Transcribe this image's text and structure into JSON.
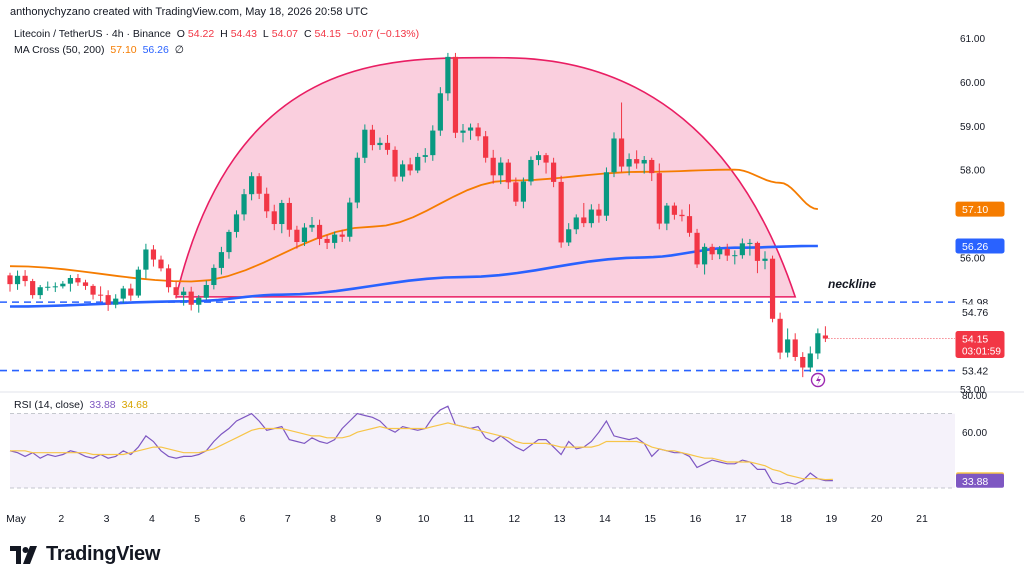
{
  "header": {
    "credit": "anthonychyzano created with TradingView.com, May 18, 2026 20:58 UTC"
  },
  "legend": {
    "symbol": "Litecoin / TetherUS · 4h · Binance",
    "o_label": "O",
    "o": "54.22",
    "h_label": "H",
    "h": "54.43",
    "l_label": "L",
    "l": "54.07",
    "c_label": "C",
    "c": "54.15",
    "change": "−0.07 (−0.13%)",
    "ma_label": "MA Cross (50, 200)",
    "ma50": "57.10",
    "ma200": "56.26",
    "ma_suffix": "∅",
    "rsi_label": "RSI (14, close)",
    "rsi": "33.88",
    "rsi_ma": "34.68"
  },
  "annotation": {
    "neckline": "neckline"
  },
  "branding": {
    "logo_text": "TradingView"
  },
  "colors": {
    "up": "#089981",
    "down": "#f23645",
    "ma50": "#f57c00",
    "ma200": "#2962ff",
    "rsi": "#7e57c2",
    "rsi_ma": "#f7c548",
    "dashed": "#2962ff",
    "cup": "#f8bbd0",
    "cup_stroke": "#e91e63"
  },
  "chart_data": [
    {
      "type": "candlestick",
      "title": "Litecoin / TetherUS · 4h · Binance",
      "x_ticks": [
        "May",
        "2",
        "3",
        "4",
        "5",
        "6",
        "7",
        "8",
        "9",
        "10",
        "11",
        "12",
        "13",
        "14",
        "15",
        "16",
        "17",
        "18",
        "19",
        "20",
        "21"
      ],
      "y_ticks": [
        53.0,
        56.0,
        57.0,
        58.0,
        59.0,
        60.0,
        61.0
      ],
      "y_labels": [
        "53.00",
        "56.00",
        "",
        "58.00",
        "59.00",
        "60.00",
        "61.00"
      ],
      "ylim": [
        52.9,
        61.3
      ],
      "candles": [
        {
          "o": 55.59,
          "h": 55.65,
          "l": 55.22,
          "c": 55.39
        },
        {
          "o": 55.39,
          "h": 55.7,
          "l": 55.26,
          "c": 55.58
        },
        {
          "o": 55.58,
          "h": 55.71,
          "l": 55.34,
          "c": 55.46
        },
        {
          "o": 55.46,
          "h": 55.51,
          "l": 55.06,
          "c": 55.14
        },
        {
          "o": 55.14,
          "h": 55.37,
          "l": 55.05,
          "c": 55.32
        },
        {
          "o": 55.32,
          "h": 55.45,
          "l": 55.24,
          "c": 55.33
        },
        {
          "o": 55.33,
          "h": 55.43,
          "l": 55.21,
          "c": 55.34
        },
        {
          "o": 55.34,
          "h": 55.46,
          "l": 55.29,
          "c": 55.4
        },
        {
          "o": 55.4,
          "h": 55.6,
          "l": 55.22,
          "c": 55.53
        },
        {
          "o": 55.53,
          "h": 55.62,
          "l": 55.35,
          "c": 55.43
        },
        {
          "o": 55.43,
          "h": 55.49,
          "l": 55.26,
          "c": 55.35
        },
        {
          "o": 55.35,
          "h": 55.39,
          "l": 55.04,
          "c": 55.15
        },
        {
          "o": 55.15,
          "h": 55.34,
          "l": 54.98,
          "c": 55.14
        },
        {
          "o": 55.14,
          "h": 55.25,
          "l": 54.78,
          "c": 54.92
        },
        {
          "o": 54.92,
          "h": 55.16,
          "l": 54.84,
          "c": 55.06
        },
        {
          "o": 55.06,
          "h": 55.35,
          "l": 54.96,
          "c": 55.29
        },
        {
          "o": 55.29,
          "h": 55.4,
          "l": 55.01,
          "c": 55.13
        },
        {
          "o": 55.13,
          "h": 55.79,
          "l": 55.08,
          "c": 55.72
        },
        {
          "o": 55.72,
          "h": 56.31,
          "l": 55.52,
          "c": 56.18
        },
        {
          "o": 56.18,
          "h": 56.28,
          "l": 55.79,
          "c": 55.95
        },
        {
          "o": 55.95,
          "h": 56.04,
          "l": 55.68,
          "c": 55.75
        },
        {
          "o": 55.75,
          "h": 55.84,
          "l": 55.2,
          "c": 55.32
        },
        {
          "o": 55.32,
          "h": 55.45,
          "l": 55.06,
          "c": 55.14
        },
        {
          "o": 55.14,
          "h": 55.32,
          "l": 54.9,
          "c": 55.22
        },
        {
          "o": 55.22,
          "h": 55.33,
          "l": 54.79,
          "c": 54.92
        },
        {
          "o": 54.92,
          "h": 55.14,
          "l": 54.74,
          "c": 55.08
        },
        {
          "o": 55.08,
          "h": 55.47,
          "l": 55.03,
          "c": 55.37
        },
        {
          "o": 55.37,
          "h": 55.84,
          "l": 55.27,
          "c": 55.76
        },
        {
          "o": 55.76,
          "h": 56.24,
          "l": 55.61,
          "c": 56.12
        },
        {
          "o": 56.12,
          "h": 56.63,
          "l": 55.97,
          "c": 56.58
        },
        {
          "o": 56.58,
          "h": 57.07,
          "l": 56.45,
          "c": 56.98
        },
        {
          "o": 56.98,
          "h": 57.56,
          "l": 56.84,
          "c": 57.44
        },
        {
          "o": 57.44,
          "h": 57.94,
          "l": 57.3,
          "c": 57.85
        },
        {
          "o": 57.85,
          "h": 57.92,
          "l": 57.33,
          "c": 57.45
        },
        {
          "o": 57.45,
          "h": 57.59,
          "l": 56.9,
          "c": 57.05
        },
        {
          "o": 57.05,
          "h": 57.2,
          "l": 56.62,
          "c": 56.76
        },
        {
          "o": 56.76,
          "h": 57.31,
          "l": 56.55,
          "c": 57.24
        },
        {
          "o": 57.24,
          "h": 57.36,
          "l": 56.47,
          "c": 56.63
        },
        {
          "o": 56.63,
          "h": 56.72,
          "l": 56.2,
          "c": 56.35
        },
        {
          "o": 56.35,
          "h": 56.78,
          "l": 56.26,
          "c": 56.68
        },
        {
          "o": 56.68,
          "h": 56.92,
          "l": 56.58,
          "c": 56.74
        },
        {
          "o": 56.74,
          "h": 56.86,
          "l": 56.28,
          "c": 56.42
        },
        {
          "o": 56.42,
          "h": 56.51,
          "l": 56.19,
          "c": 56.33
        },
        {
          "o": 56.33,
          "h": 56.59,
          "l": 56.2,
          "c": 56.52
        },
        {
          "o": 56.52,
          "h": 56.63,
          "l": 56.35,
          "c": 56.47
        },
        {
          "o": 56.47,
          "h": 57.36,
          "l": 56.36,
          "c": 57.25
        },
        {
          "o": 57.25,
          "h": 58.39,
          "l": 57.12,
          "c": 58.27
        },
        {
          "o": 58.27,
          "h": 59.03,
          "l": 58.15,
          "c": 58.91
        },
        {
          "o": 58.91,
          "h": 59.02,
          "l": 58.44,
          "c": 58.56
        },
        {
          "o": 58.56,
          "h": 58.73,
          "l": 58.45,
          "c": 58.61
        },
        {
          "o": 58.61,
          "h": 58.79,
          "l": 58.34,
          "c": 58.45
        },
        {
          "o": 58.45,
          "h": 58.53,
          "l": 57.73,
          "c": 57.84
        },
        {
          "o": 57.84,
          "h": 58.21,
          "l": 57.73,
          "c": 58.12
        },
        {
          "o": 58.12,
          "h": 58.27,
          "l": 57.87,
          "c": 57.98
        },
        {
          "o": 57.98,
          "h": 58.38,
          "l": 57.92,
          "c": 58.29
        },
        {
          "o": 58.29,
          "h": 58.49,
          "l": 58.16,
          "c": 58.33
        },
        {
          "o": 58.33,
          "h": 59.01,
          "l": 58.2,
          "c": 58.89
        },
        {
          "o": 58.89,
          "h": 59.88,
          "l": 58.77,
          "c": 59.74
        },
        {
          "o": 59.74,
          "h": 60.66,
          "l": 59.57,
          "c": 60.57
        },
        {
          "o": 60.57,
          "h": 60.66,
          "l": 58.72,
          "c": 58.84
        },
        {
          "o": 58.84,
          "h": 59.04,
          "l": 58.62,
          "c": 58.89
        },
        {
          "o": 58.89,
          "h": 59.05,
          "l": 58.68,
          "c": 58.96
        },
        {
          "o": 58.96,
          "h": 59.06,
          "l": 58.66,
          "c": 58.76
        },
        {
          "o": 58.76,
          "h": 58.88,
          "l": 58.16,
          "c": 58.27
        },
        {
          "o": 58.27,
          "h": 58.45,
          "l": 57.68,
          "c": 57.87
        },
        {
          "o": 57.87,
          "h": 58.28,
          "l": 57.67,
          "c": 58.16
        },
        {
          "o": 58.16,
          "h": 58.24,
          "l": 57.56,
          "c": 57.71
        },
        {
          "o": 57.71,
          "h": 57.82,
          "l": 57.17,
          "c": 57.27
        },
        {
          "o": 57.27,
          "h": 57.82,
          "l": 57.12,
          "c": 57.73
        },
        {
          "o": 57.73,
          "h": 58.3,
          "l": 57.64,
          "c": 58.22
        },
        {
          "o": 58.22,
          "h": 58.42,
          "l": 58.1,
          "c": 58.33
        },
        {
          "o": 58.33,
          "h": 58.38,
          "l": 57.91,
          "c": 58.16
        },
        {
          "o": 58.16,
          "h": 58.27,
          "l": 57.6,
          "c": 57.72
        },
        {
          "o": 57.72,
          "h": 57.86,
          "l": 56.22,
          "c": 56.34
        },
        {
          "o": 56.34,
          "h": 56.78,
          "l": 56.26,
          "c": 56.64
        },
        {
          "o": 56.64,
          "h": 56.98,
          "l": 56.53,
          "c": 56.91
        },
        {
          "o": 56.91,
          "h": 57.24,
          "l": 56.69,
          "c": 56.78
        },
        {
          "o": 56.78,
          "h": 57.21,
          "l": 56.68,
          "c": 57.09
        },
        {
          "o": 57.09,
          "h": 57.22,
          "l": 56.79,
          "c": 56.95
        },
        {
          "o": 56.95,
          "h": 58.05,
          "l": 56.83,
          "c": 57.94
        },
        {
          "o": 57.94,
          "h": 58.85,
          "l": 57.83,
          "c": 58.71
        },
        {
          "o": 58.71,
          "h": 59.53,
          "l": 57.94,
          "c": 58.07
        },
        {
          "o": 58.07,
          "h": 58.37,
          "l": 57.87,
          "c": 58.24
        },
        {
          "o": 58.24,
          "h": 58.44,
          "l": 58.02,
          "c": 58.14
        },
        {
          "o": 58.14,
          "h": 58.31,
          "l": 57.91,
          "c": 58.22
        },
        {
          "o": 58.22,
          "h": 58.27,
          "l": 57.74,
          "c": 57.92
        },
        {
          "o": 57.92,
          "h": 58.14,
          "l": 56.64,
          "c": 56.77
        },
        {
          "o": 56.77,
          "h": 57.24,
          "l": 56.62,
          "c": 57.18
        },
        {
          "o": 57.18,
          "h": 57.25,
          "l": 56.86,
          "c": 56.97
        },
        {
          "o": 56.97,
          "h": 57.09,
          "l": 56.82,
          "c": 56.94
        },
        {
          "o": 56.94,
          "h": 57.21,
          "l": 56.47,
          "c": 56.56
        },
        {
          "o": 56.56,
          "h": 56.65,
          "l": 55.76,
          "c": 55.84
        },
        {
          "o": 55.84,
          "h": 56.32,
          "l": 55.61,
          "c": 56.24
        },
        {
          "o": 56.24,
          "h": 56.31,
          "l": 55.94,
          "c": 56.07
        },
        {
          "o": 56.07,
          "h": 56.26,
          "l": 55.96,
          "c": 56.19
        },
        {
          "o": 56.19,
          "h": 56.31,
          "l": 55.92,
          "c": 56.04
        },
        {
          "o": 56.04,
          "h": 56.16,
          "l": 55.84,
          "c": 56.05
        },
        {
          "o": 56.05,
          "h": 56.43,
          "l": 55.97,
          "c": 56.32
        },
        {
          "o": 56.32,
          "h": 56.42,
          "l": 56.04,
          "c": 56.33
        },
        {
          "o": 56.33,
          "h": 56.36,
          "l": 55.64,
          "c": 55.92
        },
        {
          "o": 55.92,
          "h": 56.14,
          "l": 55.73,
          "c": 55.97
        },
        {
          "o": 55.97,
          "h": 56.04,
          "l": 54.52,
          "c": 54.6
        },
        {
          "o": 54.6,
          "h": 54.74,
          "l": 53.68,
          "c": 53.83
        },
        {
          "o": 53.83,
          "h": 54.38,
          "l": 53.72,
          "c": 54.13
        },
        {
          "o": 54.13,
          "h": 54.27,
          "l": 53.64,
          "c": 53.73
        },
        {
          "o": 53.73,
          "h": 53.84,
          "l": 53.27,
          "c": 53.49
        },
        {
          "o": 53.49,
          "h": 53.97,
          "l": 53.39,
          "c": 53.81
        },
        {
          "o": 53.81,
          "h": 54.38,
          "l": 53.68,
          "c": 54.27
        },
        {
          "o": 54.22,
          "h": 54.43,
          "l": 54.07,
          "c": 54.15
        }
      ],
      "ma50": [
        [
          0,
          55.8
        ],
        [
          24,
          55.45
        ],
        [
          48,
          56.7
        ],
        [
          66,
          57.75
        ],
        [
          84,
          57.95
        ],
        [
          96,
          58.0
        ],
        [
          102,
          57.7
        ],
        [
          107,
          57.1
        ]
      ],
      "ma200": [
        [
          0,
          54.88
        ],
        [
          24,
          55.0
        ],
        [
          36,
          55.15
        ],
        [
          60,
          55.55
        ],
        [
          84,
          56.0
        ],
        [
          96,
          56.22
        ],
        [
          107,
          56.26
        ]
      ],
      "levels": [
        {
          "value": 54.98,
          "label": "54.98"
        },
        {
          "value": 53.42,
          "label": "53.42"
        }
      ],
      "price_marks": [
        {
          "value": 57.1,
          "label": "57.10",
          "color": "#f57c00"
        },
        {
          "value": 56.26,
          "label": "56.26",
          "color": "#2962ff"
        },
        {
          "value": 54.98,
          "label": "54.98",
          "color": "#ffffff"
        },
        {
          "value": 54.76,
          "label": "54.76",
          "color": "#ffffff"
        },
        {
          "value": 54.15,
          "label": "54.15",
          "color": "#f23645",
          "sub": "03:01:59"
        },
        {
          "value": 53.42,
          "label": "53.42",
          "color": "#ffffff"
        }
      ],
      "neckline_value": 55.1
    },
    {
      "type": "line",
      "title": "RSI (14, close)",
      "y_ticks": [
        80,
        60
      ],
      "y_labels": [
        "80.00",
        "60.00"
      ],
      "ylim": [
        26,
        82
      ],
      "band": [
        30,
        70
      ],
      "rsi": [
        50,
        49,
        47,
        49,
        46,
        48,
        47,
        48,
        50,
        49,
        47,
        46,
        48,
        46,
        47,
        50,
        48,
        52,
        58,
        55,
        50,
        47,
        46,
        47,
        47,
        48,
        50,
        55,
        59,
        62,
        66,
        68,
        70,
        66,
        61,
        62,
        63,
        56,
        55,
        54,
        57,
        55,
        54,
        56,
        62,
        66,
        70,
        69,
        68,
        66,
        62,
        60,
        63,
        62,
        61,
        62,
        68,
        72,
        74,
        64,
        63,
        62,
        63,
        57,
        55,
        58,
        55,
        52,
        50,
        53,
        56,
        56,
        52,
        48,
        55,
        51,
        52,
        55,
        60,
        66,
        58,
        57,
        56,
        57,
        54,
        47,
        51,
        50,
        49,
        49,
        47,
        41,
        43,
        45,
        44,
        43,
        43,
        45,
        44,
        40,
        40,
        33,
        32,
        33,
        32,
        34,
        38,
        35,
        34,
        34
      ],
      "rsi_ma": [
        50,
        50,
        50,
        49,
        49,
        49,
        49,
        49,
        49,
        49,
        49,
        48,
        48,
        48,
        48,
        48,
        49,
        50,
        51,
        52,
        52,
        51,
        50,
        49,
        49,
        49,
        50,
        51,
        53,
        55,
        57,
        59,
        61,
        62,
        62,
        62,
        62,
        61,
        60,
        59,
        58,
        58,
        57,
        57,
        57,
        58,
        60,
        61,
        62,
        63,
        62,
        62,
        62,
        62,
        62,
        62,
        63,
        64,
        65,
        64,
        63,
        62,
        61,
        60,
        59,
        58,
        57,
        55,
        54,
        54,
        54,
        54,
        53,
        52,
        52,
        52,
        52,
        52,
        53,
        55,
        55,
        55,
        55,
        55,
        54,
        52,
        51,
        50,
        50,
        49,
        48,
        47,
        46,
        46,
        45,
        44,
        44,
        44,
        44,
        43,
        42,
        40,
        39,
        37,
        36,
        35,
        35,
        35,
        34.5,
        34.68
      ],
      "labels": [
        {
          "value": 34.68,
          "label": "34.68",
          "color": "#f7c548"
        },
        {
          "value": 33.88,
          "label": "33.88",
          "color": "#7e57c2"
        }
      ]
    }
  ]
}
